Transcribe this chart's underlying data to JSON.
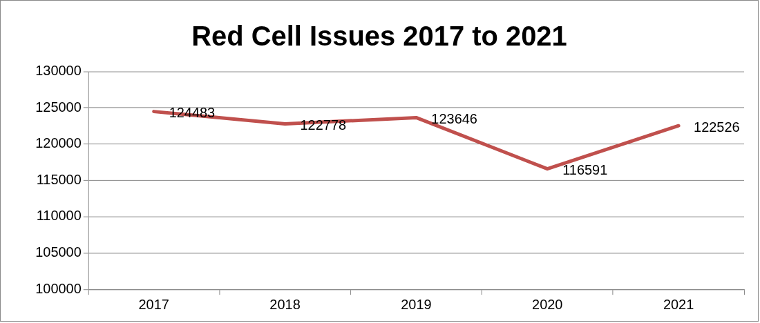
{
  "chart_data": {
    "type": "line",
    "title": "Red Cell Issues 2017 to 2021",
    "categories": [
      "2017",
      "2018",
      "2019",
      "2020",
      "2021"
    ],
    "series": [
      {
        "color": "#c0504d",
        "values": [
          124483,
          122778,
          123646,
          116591,
          122526
        ]
      }
    ],
    "ylim": [
      100000,
      130000
    ],
    "yticks": [
      100000,
      105000,
      110000,
      115000,
      120000,
      125000,
      130000
    ],
    "grid": "y",
    "legend": false,
    "marker": "none",
    "line_style": "solid",
    "data_labels": true
  }
}
